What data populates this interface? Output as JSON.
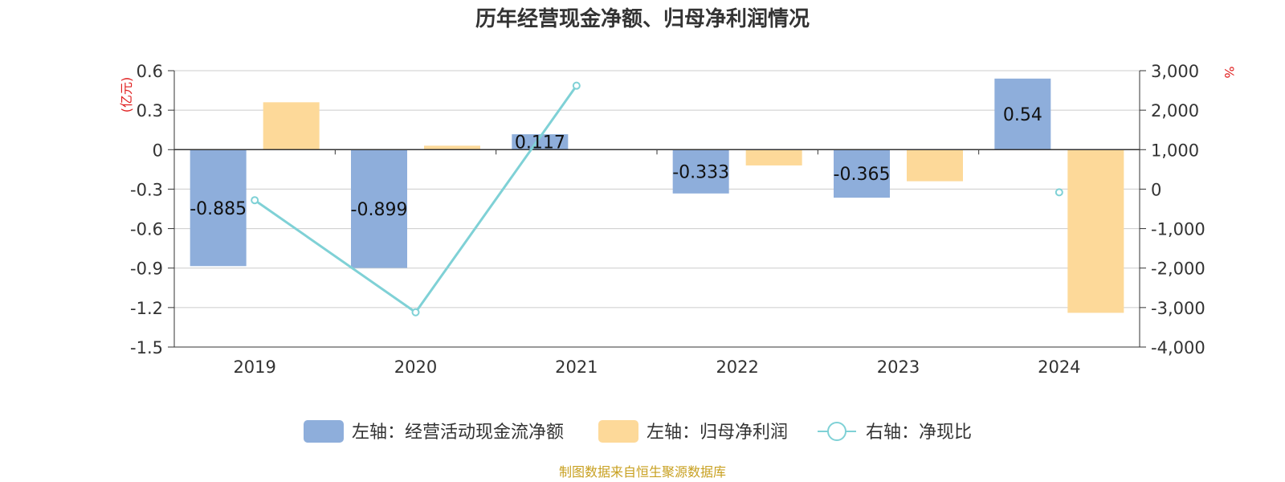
{
  "chart_data": {
    "type": "bar",
    "title": "历年经营现金净额、归母净利润情况",
    "categories": [
      "2019",
      "2020",
      "2021",
      "2022",
      "2023",
      "2024"
    ],
    "left_axis": {
      "unit": "(亿元)",
      "ylim": [
        -1.5,
        0.6
      ],
      "ticks": [
        0.6,
        0.3,
        0,
        -0.3,
        -0.6,
        -0.9,
        -1.2,
        -1.5
      ],
      "tick_labels": [
        "0.6",
        "0.3",
        "0",
        "-0.3",
        "-0.6",
        "-0.9",
        "-1.2",
        "-1.5"
      ]
    },
    "right_axis": {
      "unit": "%",
      "ylim": [
        -4000,
        3000
      ],
      "ticks": [
        3000,
        2000,
        1000,
        0,
        -1000,
        -2000,
        -3000,
        -4000
      ],
      "tick_labels": [
        "3,000",
        "2,000",
        "1,000",
        "0",
        "-1,000",
        "-2,000",
        "-3,000",
        "-4,000"
      ]
    },
    "series": [
      {
        "name": "左轴：经营活动现金流净额",
        "type": "bar",
        "axis": "left",
        "color": "#8eaedb",
        "values": [
          -0.885,
          -0.899,
          0.117,
          -0.333,
          -0.365,
          0.54
        ],
        "labels": [
          "-0.885",
          "-0.899",
          "0.117",
          "-0.333",
          "-0.365",
          "0.54"
        ]
      },
      {
        "name": "左轴：归母净利润",
        "type": "bar",
        "axis": "left",
        "color": "#fdd999",
        "values": [
          0.36,
          0.03,
          null,
          -0.12,
          -0.24,
          -1.24
        ]
      },
      {
        "name": "右轴：净现比",
        "type": "line",
        "axis": "right",
        "color": "#7fd1d6",
        "values": [
          -280,
          -3120,
          2620,
          null,
          null,
          -80
        ]
      }
    ],
    "grid": true,
    "legend_position": "bottom"
  },
  "source": "制图数据来自恒生聚源数据库",
  "colors": {
    "unit_label": "#e02020",
    "source_text": "#c8a020",
    "grid": "#cccccc",
    "axis": "#333333"
  }
}
